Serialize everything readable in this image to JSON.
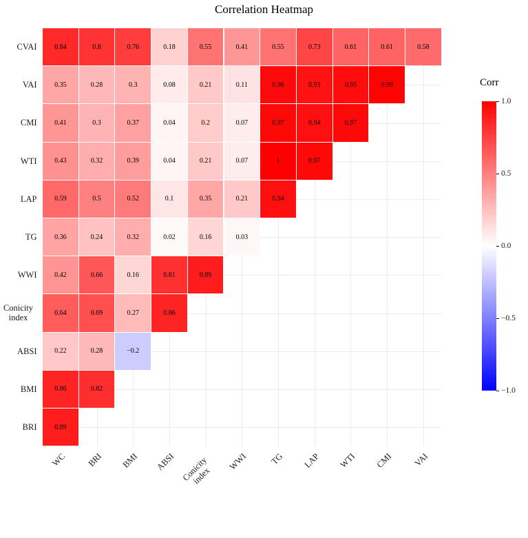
{
  "chart_data": {
    "type": "heatmap",
    "title": "Correlation Heatmap",
    "x_categories": [
      "WC",
      "BRI",
      "BMI",
      "ABSI",
      "Conicity index",
      "WWI",
      "TG",
      "LAP",
      "WTI",
      "CMI",
      "VAI"
    ],
    "y_categories": [
      "CVAI",
      "VAI",
      "CMI",
      "WTI",
      "LAP",
      "TG",
      "WWI",
      "Conicity index",
      "ABSI",
      "BMI",
      "BRI"
    ],
    "rows": [
      {
        "label": "CVAI",
        "values": [
          0.84,
          0.8,
          0.76,
          0.18,
          0.55,
          0.41,
          0.55,
          0.73,
          0.61,
          0.61,
          0.58
        ]
      },
      {
        "label": "VAI",
        "values": [
          0.35,
          0.28,
          0.3,
          0.08,
          0.21,
          0.11,
          0.96,
          0.93,
          0.95,
          0.99
        ]
      },
      {
        "label": "CMI",
        "values": [
          0.41,
          0.3,
          0.37,
          0.04,
          0.2,
          0.07,
          0.97,
          0.94,
          0.97
        ]
      },
      {
        "label": "WTI",
        "values": [
          0.43,
          0.32,
          0.39,
          0.04,
          0.21,
          0.07,
          1,
          0.97
        ]
      },
      {
        "label": "LAP",
        "values": [
          0.59,
          0.5,
          0.52,
          0.1,
          0.35,
          0.21,
          0.94
        ]
      },
      {
        "label": "TG",
        "values": [
          0.36,
          0.24,
          0.32,
          0.02,
          0.16,
          0.03
        ]
      },
      {
        "label": "WWI",
        "values": [
          0.42,
          0.66,
          0.16,
          0.81,
          0.89
        ]
      },
      {
        "label": "Conicity index",
        "values": [
          0.64,
          0.69,
          0.27,
          0.86
        ]
      },
      {
        "label": "ABSI",
        "values": [
          0.22,
          0.28,
          -0.2
        ]
      },
      {
        "label": "BMI",
        "values": [
          0.86,
          0.82
        ]
      },
      {
        "label": "BRI",
        "values": [
          0.89
        ]
      }
    ],
    "value_range": [
      -1,
      1
    ],
    "grid": true,
    "colors": {
      "high": "#ff0000",
      "mid": "#ffffff",
      "low": "#0000ff"
    },
    "legend": {
      "title": "Corr",
      "position": "right",
      "ticks": [
        {
          "label": "1.0",
          "value": 1.0
        },
        {
          "label": "0.5",
          "value": 0.5
        },
        {
          "label": "0.0",
          "value": 0.0
        },
        {
          "label": "-0.5",
          "value": -0.5
        },
        {
          "label": "-1.0",
          "value": -1.0
        }
      ]
    }
  }
}
